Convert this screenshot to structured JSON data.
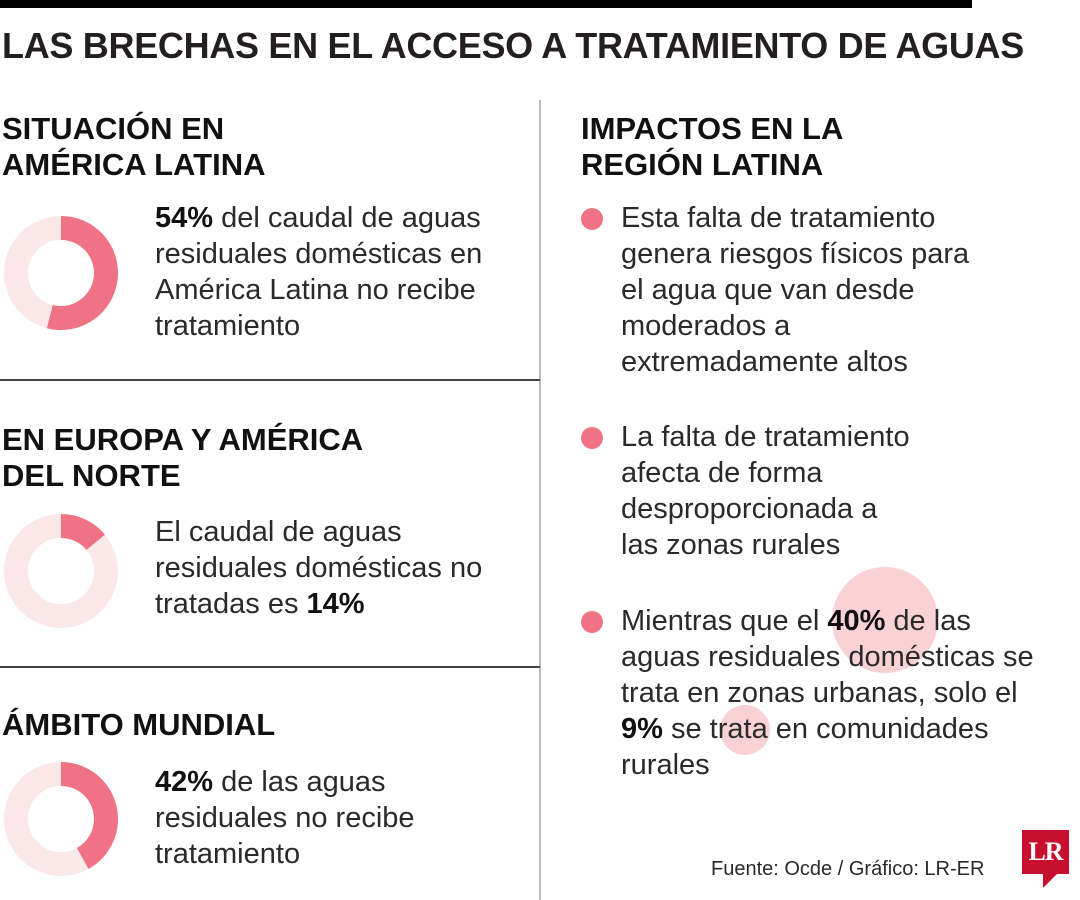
{
  "title": "LAS BRECHAS EN EL ACCESO A TRATAMIENTO DE AGUAS",
  "colors": {
    "accent": "#ef7385",
    "track": "#fbe9ea",
    "bubble": "#f9d2d6",
    "logo": "#c8102e"
  },
  "left_sections": [
    {
      "title": "SITUACIÓN EN AMÉRICA LATINA",
      "percent": 54,
      "text_before": "",
      "highlight": "54%",
      "text_after": " del caudal de aguas residuales domésticas en América Latina no recibe tratamiento"
    },
    {
      "title": "EN EUROPA Y AMÉRICA DEL NORTE",
      "percent": 14,
      "text_before": "El caudal de aguas residuales domésticas no tratadas es ",
      "highlight": "14%",
      "text_after": ""
    },
    {
      "title": "ÁMBITO MUNDIAL",
      "percent": 42,
      "text_before": "",
      "highlight": "42%",
      "text_after": " de las aguas residuales no recibe tratamiento"
    }
  ],
  "right_section": {
    "title": "IMPACTOS EN LA REGIÓN LATINA",
    "bullets": [
      {
        "text": "Esta falta de tratamiento genera riesgos físicos para el agua que van desde moderados a extremadamente altos"
      },
      {
        "text": "La falta de tratamiento afecta de forma desproporcionada a las zonas rurales"
      },
      {
        "part1": "Mientras que el ",
        "highlight1": "40%",
        "part2": " de las aguas residuales domésticas se trata en zonas urbanas, solo el ",
        "highlight2": "9%",
        "part3": " se trata en comunidades rurales",
        "urban_percent": 40,
        "rural_percent": 9
      }
    ]
  },
  "source": "Fuente: Ocde / Gráfico: LR-ER",
  "logo_text": "LR"
}
